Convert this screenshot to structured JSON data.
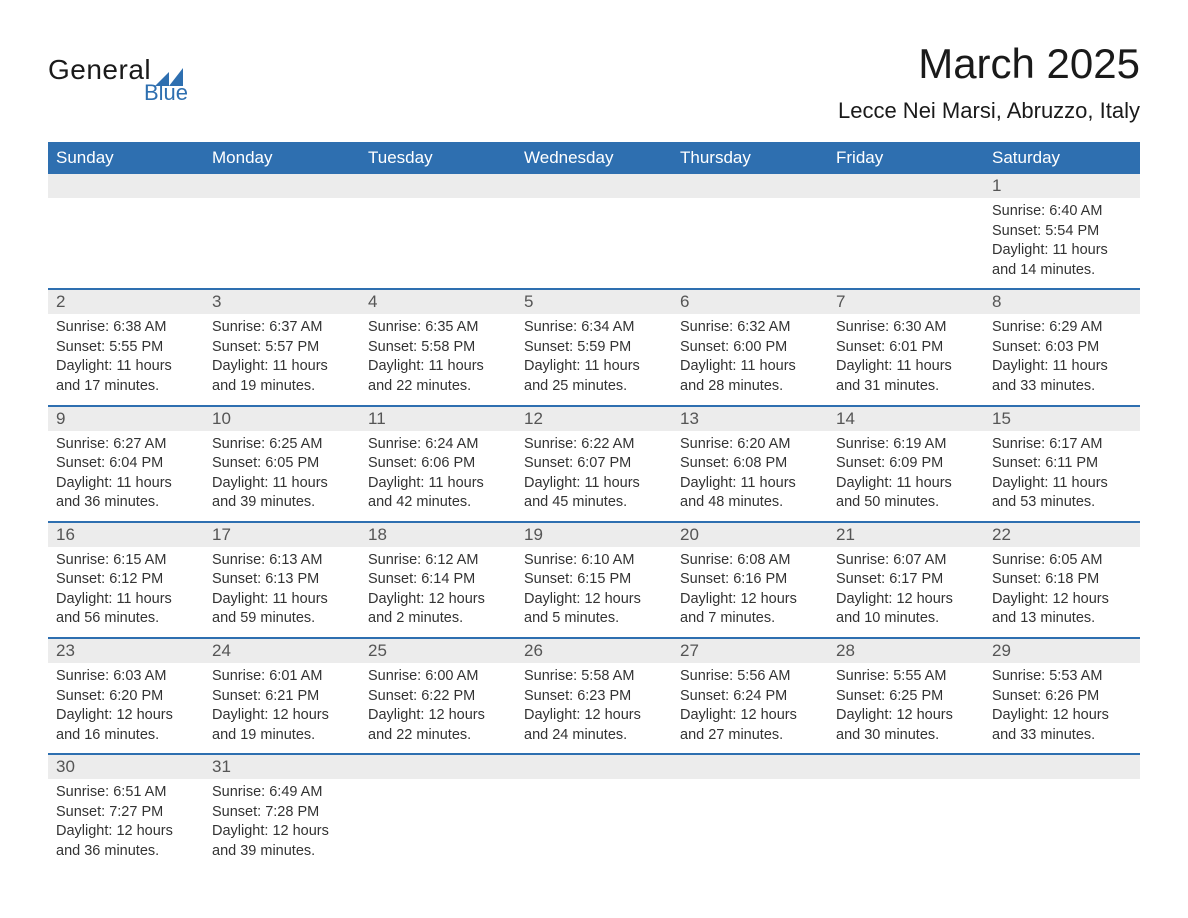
{
  "logo": {
    "word1": "General",
    "word2": "Blue",
    "shape_color": "#2e6fb0"
  },
  "title": "March 2025",
  "location": "Lecce Nei Marsi, Abruzzo, Italy",
  "colors": {
    "header_bg": "#2e6fb0",
    "header_text": "#ffffff",
    "daynum_bg": "#ececec",
    "text": "#333333",
    "week_border": "#2e6fb0"
  },
  "typography": {
    "title_fontsize": 42,
    "location_fontsize": 22,
    "weekday_fontsize": 17,
    "daynum_fontsize": 17,
    "body_fontsize": 14.5,
    "font_family": "Arial"
  },
  "weekdays": [
    "Sunday",
    "Monday",
    "Tuesday",
    "Wednesday",
    "Thursday",
    "Friday",
    "Saturday"
  ],
  "weeks": [
    [
      null,
      null,
      null,
      null,
      null,
      null,
      {
        "n": "1",
        "sunrise": "6:40 AM",
        "sunset": "5:54 PM",
        "daylight": "11 hours and 14 minutes."
      }
    ],
    [
      {
        "n": "2",
        "sunrise": "6:38 AM",
        "sunset": "5:55 PM",
        "daylight": "11 hours and 17 minutes."
      },
      {
        "n": "3",
        "sunrise": "6:37 AM",
        "sunset": "5:57 PM",
        "daylight": "11 hours and 19 minutes."
      },
      {
        "n": "4",
        "sunrise": "6:35 AM",
        "sunset": "5:58 PM",
        "daylight": "11 hours and 22 minutes."
      },
      {
        "n": "5",
        "sunrise": "6:34 AM",
        "sunset": "5:59 PM",
        "daylight": "11 hours and 25 minutes."
      },
      {
        "n": "6",
        "sunrise": "6:32 AM",
        "sunset": "6:00 PM",
        "daylight": "11 hours and 28 minutes."
      },
      {
        "n": "7",
        "sunrise": "6:30 AM",
        "sunset": "6:01 PM",
        "daylight": "11 hours and 31 minutes."
      },
      {
        "n": "8",
        "sunrise": "6:29 AM",
        "sunset": "6:03 PM",
        "daylight": "11 hours and 33 minutes."
      }
    ],
    [
      {
        "n": "9",
        "sunrise": "6:27 AM",
        "sunset": "6:04 PM",
        "daylight": "11 hours and 36 minutes."
      },
      {
        "n": "10",
        "sunrise": "6:25 AM",
        "sunset": "6:05 PM",
        "daylight": "11 hours and 39 minutes."
      },
      {
        "n": "11",
        "sunrise": "6:24 AM",
        "sunset": "6:06 PM",
        "daylight": "11 hours and 42 minutes."
      },
      {
        "n": "12",
        "sunrise": "6:22 AM",
        "sunset": "6:07 PM",
        "daylight": "11 hours and 45 minutes."
      },
      {
        "n": "13",
        "sunrise": "6:20 AM",
        "sunset": "6:08 PM",
        "daylight": "11 hours and 48 minutes."
      },
      {
        "n": "14",
        "sunrise": "6:19 AM",
        "sunset": "6:09 PM",
        "daylight": "11 hours and 50 minutes."
      },
      {
        "n": "15",
        "sunrise": "6:17 AM",
        "sunset": "6:11 PM",
        "daylight": "11 hours and 53 minutes."
      }
    ],
    [
      {
        "n": "16",
        "sunrise": "6:15 AM",
        "sunset": "6:12 PM",
        "daylight": "11 hours and 56 minutes."
      },
      {
        "n": "17",
        "sunrise": "6:13 AM",
        "sunset": "6:13 PM",
        "daylight": "11 hours and 59 minutes."
      },
      {
        "n": "18",
        "sunrise": "6:12 AM",
        "sunset": "6:14 PM",
        "daylight": "12 hours and 2 minutes."
      },
      {
        "n": "19",
        "sunrise": "6:10 AM",
        "sunset": "6:15 PM",
        "daylight": "12 hours and 5 minutes."
      },
      {
        "n": "20",
        "sunrise": "6:08 AM",
        "sunset": "6:16 PM",
        "daylight": "12 hours and 7 minutes."
      },
      {
        "n": "21",
        "sunrise": "6:07 AM",
        "sunset": "6:17 PM",
        "daylight": "12 hours and 10 minutes."
      },
      {
        "n": "22",
        "sunrise": "6:05 AM",
        "sunset": "6:18 PM",
        "daylight": "12 hours and 13 minutes."
      }
    ],
    [
      {
        "n": "23",
        "sunrise": "6:03 AM",
        "sunset": "6:20 PM",
        "daylight": "12 hours and 16 minutes."
      },
      {
        "n": "24",
        "sunrise": "6:01 AM",
        "sunset": "6:21 PM",
        "daylight": "12 hours and 19 minutes."
      },
      {
        "n": "25",
        "sunrise": "6:00 AM",
        "sunset": "6:22 PM",
        "daylight": "12 hours and 22 minutes."
      },
      {
        "n": "26",
        "sunrise": "5:58 AM",
        "sunset": "6:23 PM",
        "daylight": "12 hours and 24 minutes."
      },
      {
        "n": "27",
        "sunrise": "5:56 AM",
        "sunset": "6:24 PM",
        "daylight": "12 hours and 27 minutes."
      },
      {
        "n": "28",
        "sunrise": "5:55 AM",
        "sunset": "6:25 PM",
        "daylight": "12 hours and 30 minutes."
      },
      {
        "n": "29",
        "sunrise": "5:53 AM",
        "sunset": "6:26 PM",
        "daylight": "12 hours and 33 minutes."
      }
    ],
    [
      {
        "n": "30",
        "sunrise": "6:51 AM",
        "sunset": "7:27 PM",
        "daylight": "12 hours and 36 minutes."
      },
      {
        "n": "31",
        "sunrise": "6:49 AM",
        "sunset": "7:28 PM",
        "daylight": "12 hours and 39 minutes."
      },
      null,
      null,
      null,
      null,
      null
    ]
  ],
  "labels": {
    "sunrise": "Sunrise: ",
    "sunset": "Sunset: ",
    "daylight": "Daylight: "
  }
}
